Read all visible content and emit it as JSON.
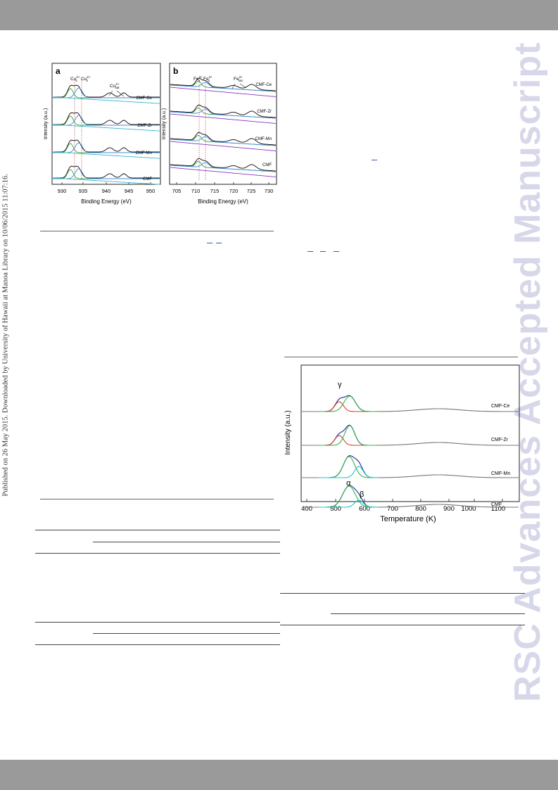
{
  "side_note": "Published on 26 May 2015. Downloaded by University of Hawaii at Manoa Library on 10/06/2015 11:07:16.",
  "watermark": "RSC Advances Accepted Manuscript",
  "figure_xps": {
    "panel_a": {
      "label": "a",
      "ylabel": "Intensity (a.u.)",
      "xlabel": "Binding Energy (eV)",
      "ticks": [
        "930",
        "935",
        "940",
        "945",
        "950"
      ],
      "series": [
        "CMF-Ce",
        "CMF-Zr",
        "CMF-Mn",
        "CMF"
      ],
      "peak_labels": {
        "cu_s": "Cu",
        "cu_s_sub": "s",
        "cu_o": "Cu",
        "cu_o_sub": "o",
        "cu_sat": "Cu",
        "cu_sat_sub": "sat",
        "sup": "2+"
      }
    },
    "panel_b": {
      "label": "b",
      "ylabel": "Intensity (a.u.)",
      "xlabel": "Binding Energy (eV)",
      "ticks": [
        "705",
        "710",
        "715",
        "720",
        "725",
        "730"
      ],
      "series": [
        "CMF-Ce",
        "CMF-Zr",
        "CMF-Mn",
        "CMF"
      ],
      "peak_labels": {
        "fe_s": "Fe",
        "fe_s_sub": "s",
        "fe_o": "Fe",
        "fe_o_sub": "o",
        "fe_sat": "Fe",
        "fe_sat_sub": "sat",
        "sup": "3+"
      }
    }
  },
  "figure_tpr": {
    "ylabel": "Intensity (a.u.)",
    "xlabel": "Temperature (K)",
    "ticks": [
      "400",
      "500",
      "600",
      "700",
      "800",
      "900",
      "1000",
      "1100"
    ],
    "series": [
      "CMF-Ce",
      "CMF-Zr",
      "CMF-Mn",
      "CMF"
    ],
    "peak_labels": {
      "gamma": "γ",
      "alpha": "α",
      "beta": "β"
    }
  }
}
